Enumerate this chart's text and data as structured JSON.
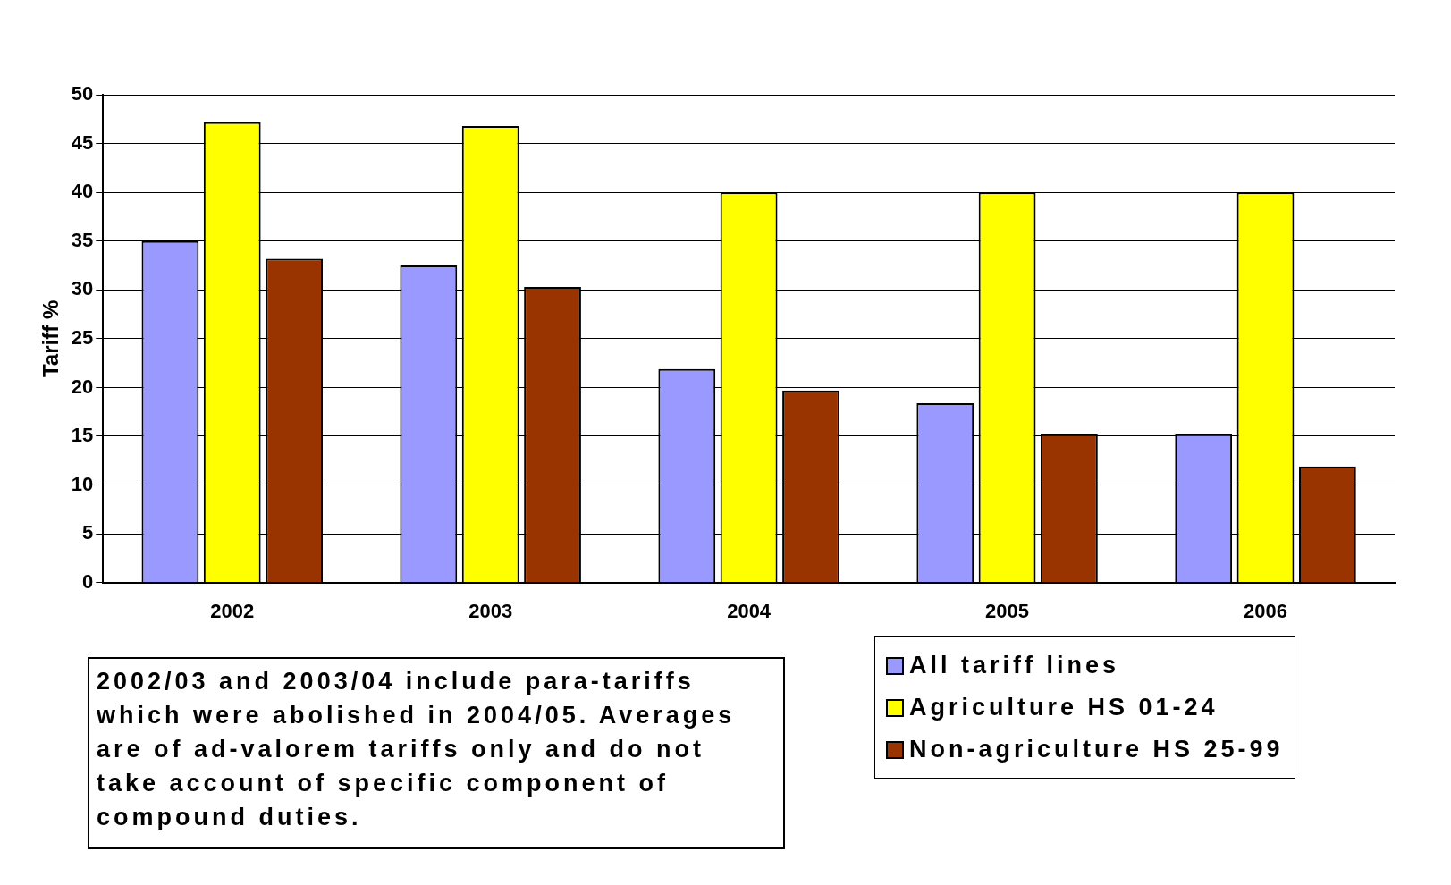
{
  "chart_data": {
    "type": "bar",
    "ylabel": "Tariff %",
    "categories": [
      "2002",
      "2003",
      "2004",
      "2005",
      "2006"
    ],
    "series": [
      {
        "name": "All tariff lines",
        "color": "#9999ff",
        "values": [
          35,
          32.5,
          21.9,
          18.4,
          15.2
        ]
      },
      {
        "name": "Agriculture HS 01-24",
        "color": "#ffff00",
        "values": [
          47.2,
          46.8,
          40,
          40,
          40
        ]
      },
      {
        "name": "Non-agriculture HS 25-99",
        "color": "#993300",
        "values": [
          33.2,
          30.3,
          19.7,
          15.2,
          11.9
        ]
      }
    ],
    "ylim": [
      0,
      50
    ],
    "yticks": [
      0,
      5,
      10,
      15,
      20,
      25,
      30,
      35,
      40,
      45,
      50
    ],
    "grid": "y",
    "legend": "bottom right",
    "annotations": [
      "2002/03 and 2003/04 include para-tariffs which were abolished in 2004/05. Averages are of ad-valorem tariffs only and do not take account of specific component of compound duties."
    ]
  }
}
